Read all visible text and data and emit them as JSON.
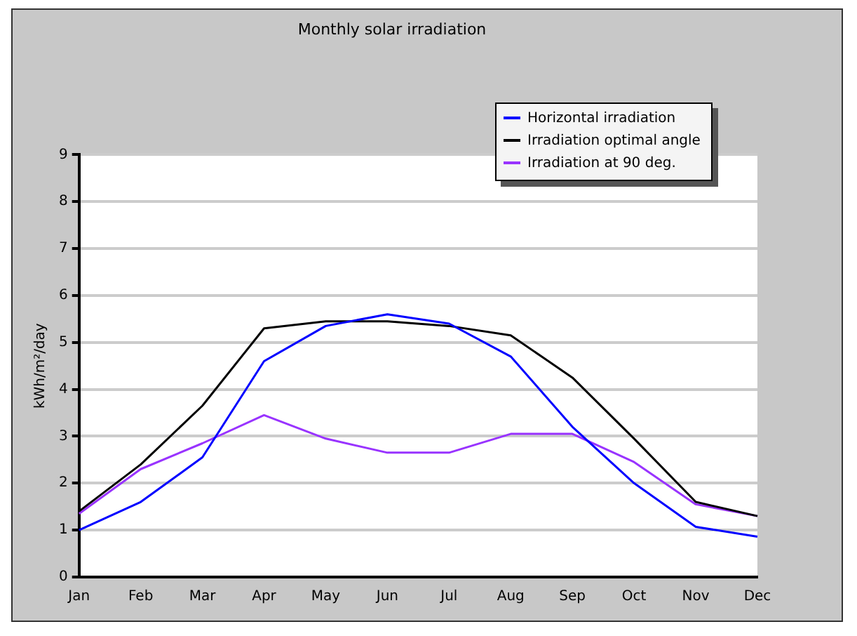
{
  "chart_data": {
    "type": "line",
    "title": "Monthly solar irradiation",
    "ylabel": "kWh/m²/day",
    "categories": [
      "Jan",
      "Feb",
      "Mar",
      "Apr",
      "May",
      "Jun",
      "Jul",
      "Aug",
      "Sep",
      "Oct",
      "Nov",
      "Dec"
    ],
    "series": [
      {
        "name": "Horizontal irradiation",
        "color": "#0000ff",
        "values": [
          1.0,
          1.6,
          2.55,
          4.6,
          5.35,
          5.6,
          5.4,
          4.7,
          3.2,
          2.0,
          1.07,
          0.86
        ]
      },
      {
        "name": "Irradiation optimal angle",
        "color": "#000000",
        "values": [
          1.4,
          2.4,
          3.65,
          5.3,
          5.45,
          5.45,
          5.35,
          5.15,
          4.25,
          2.95,
          1.6,
          1.3
        ]
      },
      {
        "name": "Irradiation at 90 deg.",
        "color": "#9933ff",
        "values": [
          1.35,
          2.3,
          2.85,
          3.45,
          2.95,
          2.65,
          2.65,
          3.05,
          3.05,
          2.45,
          1.55,
          1.3
        ]
      }
    ],
    "ylim": [
      0,
      9
    ],
    "yticks": [
      0,
      1,
      2,
      3,
      4,
      5,
      6,
      7,
      8,
      9
    ],
    "grid": "y",
    "legend": "top right",
    "marker": "none"
  }
}
